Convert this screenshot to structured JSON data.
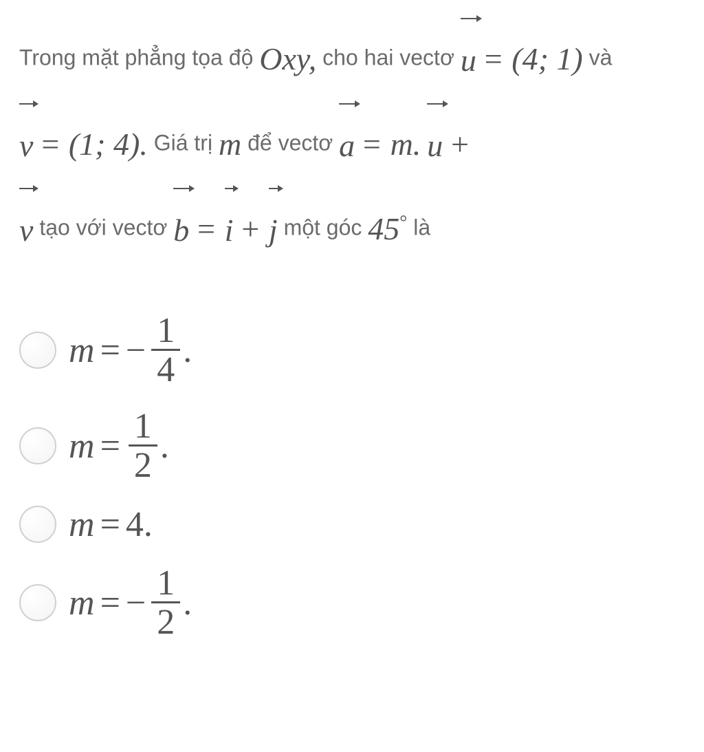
{
  "question": {
    "t1": "Trong mặt phẳng tọa độ ",
    "oxy": "Oxy,",
    "t2": " cho hai vectơ ",
    "u": "u",
    "eq1": " = ",
    "uval": "(4; 1)",
    "t3": " và",
    "v": "v",
    "eq2": " = ",
    "vval": "(1; 4).",
    "t4": " Giá trị ",
    "m": "m",
    "t5": " để vectơ ",
    "a": "a",
    "eq3": " = ",
    "mdot": "m.",
    "u2": "u",
    "plus1": " + ",
    "v2": "v",
    "t6": " tạo với vectơ ",
    "b": "b",
    "eq4": " = ",
    "i": "i",
    "plus2": " + ",
    "j": "j",
    "t7": " một góc ",
    "angle": "45",
    "deg": "°",
    "t8": " là"
  },
  "options": {
    "a": {
      "m": "m",
      "eq": "=",
      "sign": "−",
      "num": "1",
      "den": "4",
      "dot": "."
    },
    "b": {
      "m": "m",
      "eq": "=",
      "num": "1",
      "den": "2",
      "dot": "."
    },
    "c": {
      "m": "m",
      "eq": "=",
      "val": "4.",
      "dot": ""
    },
    "d": {
      "m": "m",
      "eq": "=",
      "sign": "−",
      "num": "1",
      "den": "2",
      "dot": "."
    }
  }
}
